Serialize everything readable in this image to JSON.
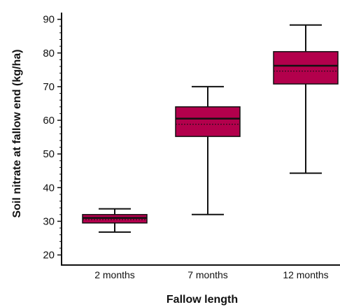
{
  "chart_data": {
    "type": "box",
    "xlabel": "Fallow length",
    "ylabel": "Soil nitrate at fallow end (kg/ha)",
    "ylim": [
      17,
      92
    ],
    "yticks": [
      20,
      30,
      40,
      50,
      60,
      70,
      80,
      90
    ],
    "categories": [
      "2 months",
      "7 months",
      "12 months"
    ],
    "boxes": [
      {
        "category": "2 months",
        "min": 26.8,
        "q1": 29.5,
        "median": 31.0,
        "mean": 30.5,
        "q3": 32.0,
        "max": 33.7
      },
      {
        "category": "7 months",
        "min": 32.0,
        "q1": 55.2,
        "median": 60.5,
        "mean": 58.8,
        "q3": 64.0,
        "max": 70.0
      },
      {
        "category": "12 months",
        "min": 44.3,
        "q1": 70.8,
        "median": 76.2,
        "mean": 74.6,
        "q3": 80.4,
        "max": 88.3
      }
    ],
    "box_color": "#b3004c",
    "line_color": "#111111",
    "grid": false,
    "legend": "none"
  }
}
